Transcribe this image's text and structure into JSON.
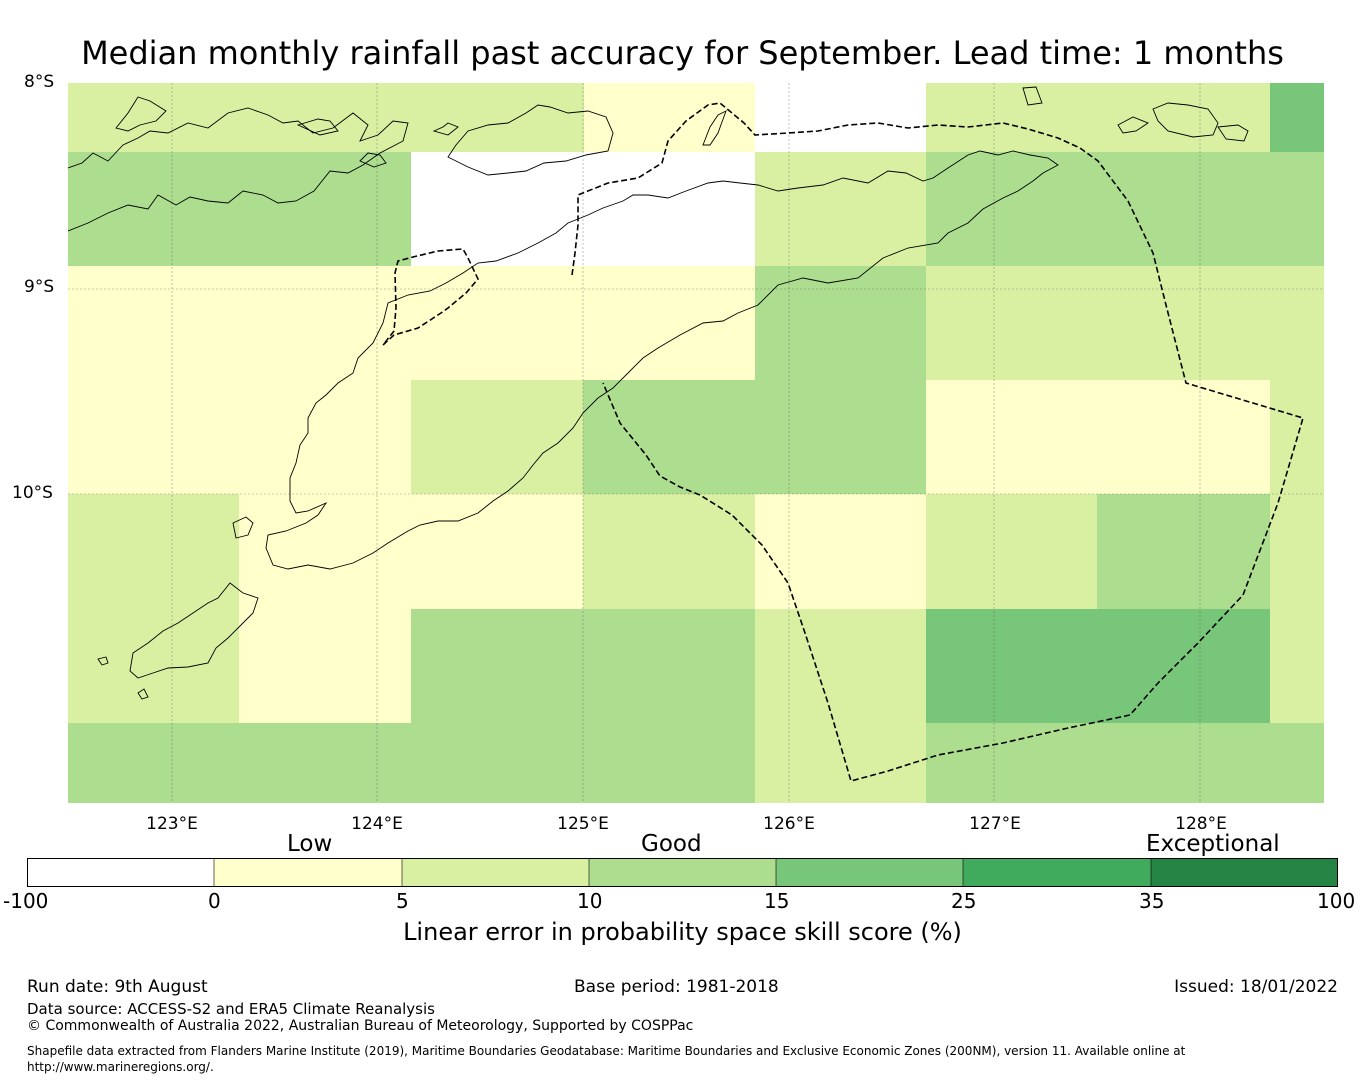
{
  "title": "Median monthly rainfall past accuracy for September. Lead time: 1 months",
  "map": {
    "lat_labels": [
      "8°S",
      "9°S",
      "10°S"
    ],
    "lon_labels": [
      "123°E",
      "124°E",
      "125°E",
      "126°E",
      "127°E",
      "128°E"
    ],
    "lon_range": [
      122.5,
      128.6
    ],
    "lat_range": [
      -11.5,
      -8.0
    ],
    "colors": {
      "white": "#ffffff",
      "c0_5": "#ffffcc",
      "c5_10": "#d9f0a3",
      "c10_15": "#addd8e",
      "c15_25": "#78c679",
      "c25_35": "#41ab5d",
      "c35_100": "#238443"
    }
  },
  "colorbar": {
    "categories": [
      "Low",
      "Good",
      "Exceptional"
    ],
    "ticks": [
      "-100",
      "0",
      "5",
      "10",
      "15",
      "25",
      "35",
      "100"
    ],
    "colors": [
      "#ffffff",
      "#ffffcc",
      "#d9f0a3",
      "#addd8e",
      "#78c679",
      "#41ab5d",
      "#238443"
    ],
    "label": "Linear error in probability space skill score (%)"
  },
  "footer": {
    "run_date": "Run date: 9th August",
    "base_period": "Base period: 1981-2018",
    "issued": "Issued: 18/01/2022",
    "data_source": "Data source: ACCESS-S2 and ERA5 Climate Reanalysis",
    "copyright": "© Commonwealth of Australia 2022, Australian Bureau of Meteorology, Supported by COSPPac",
    "shapefile": "Shapefile data extracted from Flanders Marine Institute (2019), Maritime Boundaries Geodatabase: Maritime Boundaries and Exclusive Economic Zones (200NM), version 11. Available online at http://www.marineregions.org/."
  }
}
